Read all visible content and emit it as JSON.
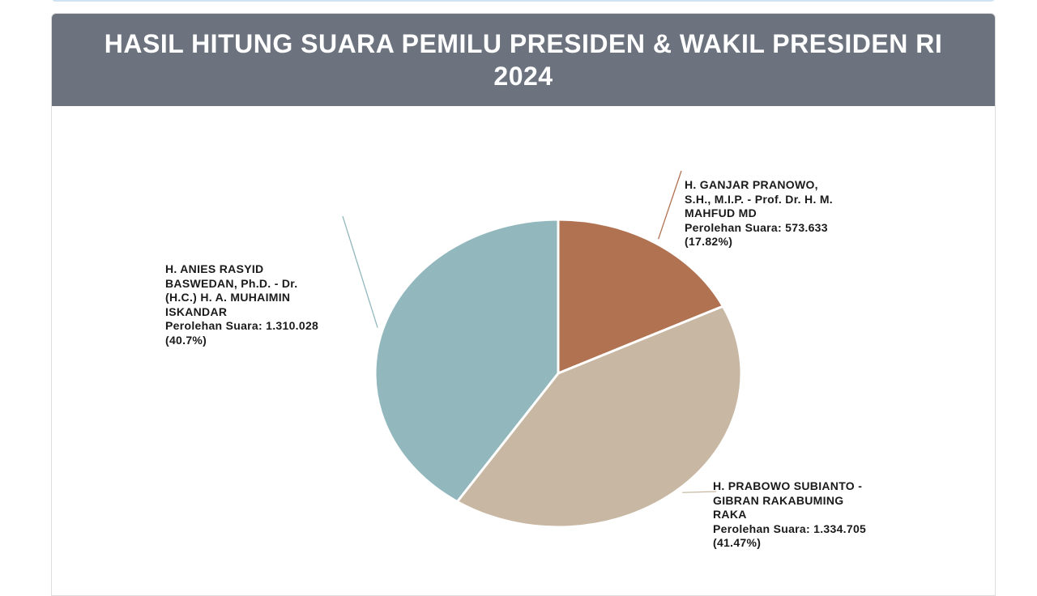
{
  "header": {
    "title": "HASIL HITUNG SUARA PEMILU PRESIDEN & WAKIL PRESIDEN RI 2024"
  },
  "chart_data": {
    "type": "pie",
    "title": "HASIL HITUNG SUARA PEMILU PRESIDEN & WAKIL PRESIDEN RI 2024",
    "start_angle_deg": 0,
    "direction": "clockwise",
    "slices": [
      {
        "name": "H. GANJAR PRANOWO,\nS.H., M.I.P. - Prof. Dr. H. M.\nMAHFUD MD",
        "vote_text": "Perolehan Suara: 573.633",
        "pct_text": "(17.82%)",
        "value": 573633,
        "percent": 17.82,
        "color": "#b07250"
      },
      {
        "name": "H. PRABOWO SUBIANTO -\nGIBRAN RAKABUMING\nRAKA",
        "vote_text": "Perolehan Suara: 1.334.705",
        "pct_text": "(41.47%)",
        "value": 1334705,
        "percent": 41.47,
        "color": "#c8b8a3"
      },
      {
        "name": "H. ANIES RASYID\nBASWEDAN, Ph.D. - Dr.\n(H.C.) H. A. MUHAIMIN\nISKANDAR",
        "vote_text": "Perolehan Suara: 1.310.028",
        "pct_text": "(40.7%)",
        "value": 1310028,
        "percent": 40.7,
        "color": "#92b8bd"
      }
    ]
  }
}
